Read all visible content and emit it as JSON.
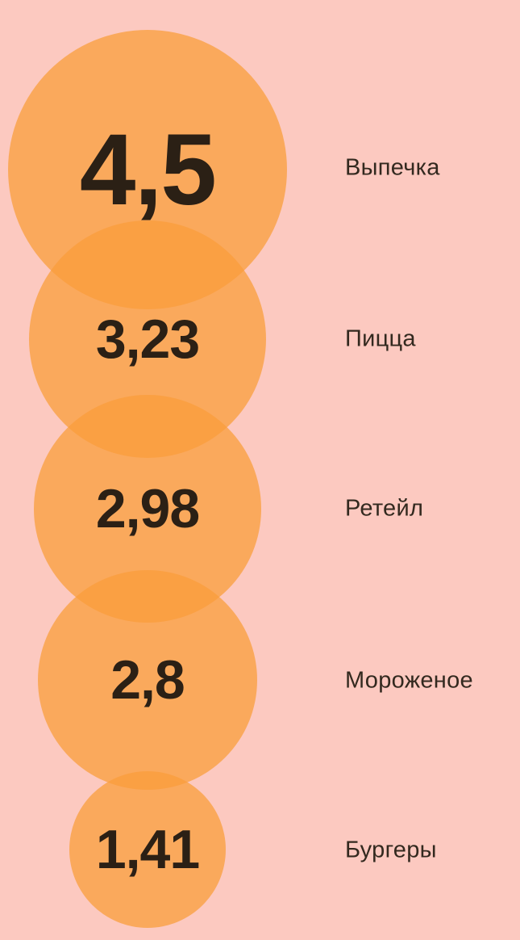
{
  "colors": {
    "background": "#fcc9c0",
    "bubble": "rgba(249,157,59,0.75)",
    "bubble_single_layer_rendered": "#faa85c",
    "bubble_overlap_rendered": "#f9a043",
    "number_text": "#2b2015",
    "label_text": "#33291f"
  },
  "chart_data": {
    "type": "bubble",
    "title": "",
    "orientation": "vertical column, circles overlapping, labels at right",
    "size_encoding": "circle area proportional to value",
    "categories": [
      "Выпечка",
      "Пицца",
      "Ретейл",
      "Мороженое",
      "Бургеры"
    ],
    "values": [
      4.5,
      3.23,
      2.98,
      2.8,
      1.41
    ],
    "points": [
      {
        "label": "Выпечка",
        "value": 4.5,
        "value_label": "4,5"
      },
      {
        "label": "Пицца",
        "value": 3.23,
        "value_label": "3,23"
      },
      {
        "label": "Ретейл",
        "value": 2.98,
        "value_label": "2,98"
      },
      {
        "label": "Мороженое",
        "value": 2.8,
        "value_label": "2,8"
      },
      {
        "label": "Бургеры",
        "value": 1.41,
        "value_label": "1,41"
      }
    ]
  }
}
